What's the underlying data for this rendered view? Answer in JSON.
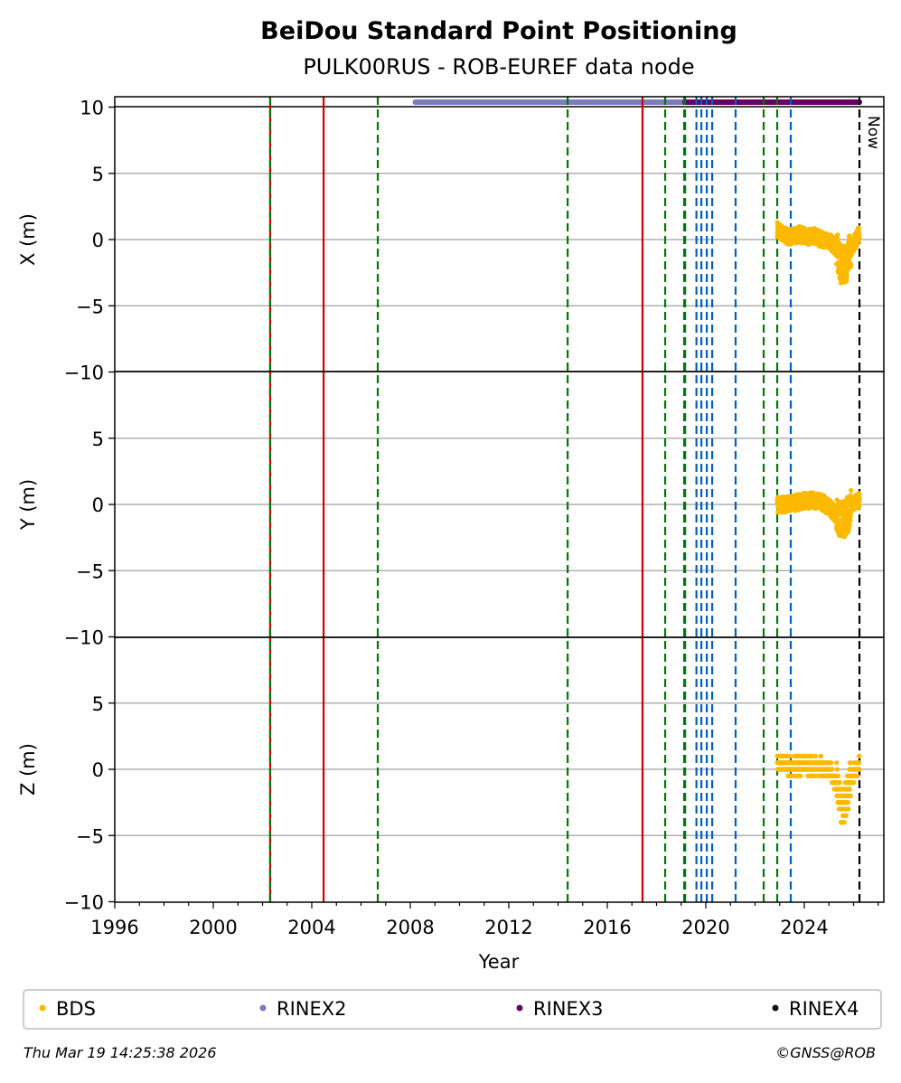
{
  "chart_data": {
    "type": "scatter",
    "title": "BeiDou Standard Point Positioning",
    "subtitle": "PULK00RUS - ROB-EUREF data node",
    "xlabel": "Year",
    "xlim": [
      1996,
      2027.2
    ],
    "xticks": [
      "1996",
      "2000",
      "2004",
      "2008",
      "2012",
      "2016",
      "2020",
      "2024"
    ],
    "panels": [
      {
        "ylabel": "X (m)",
        "ylim": [
          -10,
          10.8
        ],
        "yticks": [
          "10",
          "5",
          "0",
          "−5",
          "−10"
        ]
      },
      {
        "ylabel": "Y (m)",
        "ylim": [
          -10,
          10
        ],
        "yticks": [
          "5",
          "0",
          "−5",
          "−10"
        ]
      },
      {
        "ylabel": "Z (m)",
        "ylim": [
          -10,
          10
        ],
        "yticks": [
          "5",
          "0",
          "−5",
          "−10"
        ]
      }
    ],
    "series": [
      {
        "name": "BDS",
        "color": "#fbb900",
        "x": [
          2022.9,
          2023.2,
          2023.5,
          2023.8,
          2024.1,
          2024.4,
          2024.7,
          2025.0,
          2025.3,
          2025.5,
          2025.7,
          2025.9,
          2026.1,
          2026.24
        ],
        "X": [
          0.8,
          0.3,
          0.2,
          0.4,
          0.2,
          0.3,
          0.0,
          -0.1,
          -0.6,
          -2.0,
          -1.8,
          -0.6,
          0.0,
          0.5
        ],
        "Y": [
          0.0,
          0.0,
          0.1,
          0.2,
          0.3,
          0.3,
          0.2,
          -0.2,
          -0.8,
          -1.2,
          -1.0,
          -0.2,
          0.2,
          0.3
        ],
        "Z": [
          0.5,
          0.3,
          0.2,
          0.3,
          0.3,
          0.2,
          0.2,
          0.0,
          -1.0,
          -3.0,
          -2.5,
          -0.5,
          0.0,
          0.3
        ]
      }
    ],
    "data_bars": [
      {
        "name": "RINEX2",
        "color": "#7b7bbd",
        "from": 2008.2,
        "to": 2019.15
      },
      {
        "name": "RINEX3",
        "color": "#6a0062",
        "from": 2019.15,
        "to": 2026.24
      }
    ],
    "events": [
      {
        "year": 2002.31,
        "color": "#d40000",
        "style": "solid"
      },
      {
        "year": 2002.31,
        "color": "#007a00",
        "style": "dashed"
      },
      {
        "year": 2004.48,
        "color": "#d40000",
        "style": "solid"
      },
      {
        "year": 2006.68,
        "color": "#007a00",
        "style": "dashed"
      },
      {
        "year": 2014.39,
        "color": "#007a00",
        "style": "dashed"
      },
      {
        "year": 2017.43,
        "color": "#d40000",
        "style": "solid"
      },
      {
        "year": 2018.35,
        "color": "#007a00",
        "style": "dashed"
      },
      {
        "year": 2019.12,
        "color": "#0060c0",
        "style": "dashed"
      },
      {
        "year": 2019.16,
        "color": "#007a00",
        "style": "dashed"
      },
      {
        "year": 2019.62,
        "color": "#0060c0",
        "style": "dashed"
      },
      {
        "year": 2019.82,
        "color": "#0060c0",
        "style": "dashed"
      },
      {
        "year": 2020.04,
        "color": "#0060c0",
        "style": "dashed"
      },
      {
        "year": 2020.26,
        "color": "#0060c0",
        "style": "dashed"
      },
      {
        "year": 2021.21,
        "color": "#0060c0",
        "style": "dashed"
      },
      {
        "year": 2022.35,
        "color": "#007a00",
        "style": "dashed"
      },
      {
        "year": 2022.9,
        "color": "#007a00",
        "style": "dashed"
      },
      {
        "year": 2023.45,
        "color": "#0060c0",
        "style": "dashed"
      },
      {
        "year": 2026.24,
        "color": "#000000",
        "style": "dashed",
        "label": "Now"
      }
    ],
    "legend": [
      {
        "label": "BDS",
        "color": "#fbb900"
      },
      {
        "label": "RINEX2",
        "color": "#7b7bbd"
      },
      {
        "label": "RINEX3",
        "color": "#6a0062"
      },
      {
        "label": "RINEX4",
        "color": "#1a0a1a"
      }
    ],
    "legend_position": "bottom"
  },
  "footer": {
    "timestamp": "Thu Mar 19 14:25:38 2026",
    "credit": "©GNSS@ROB"
  }
}
